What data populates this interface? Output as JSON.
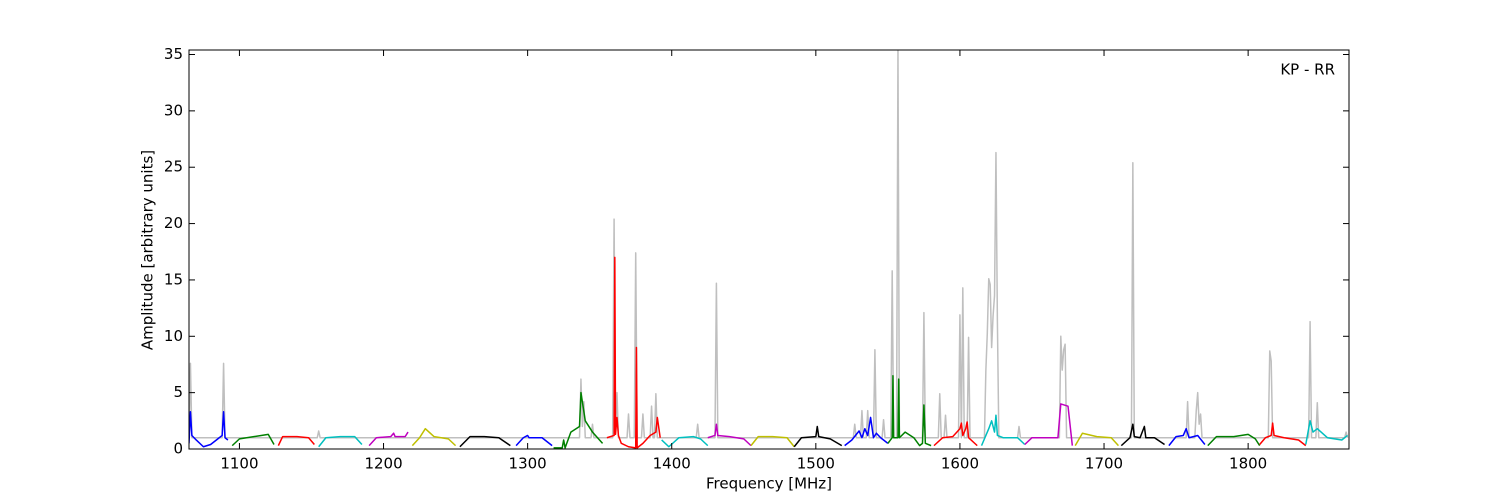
{
  "chart_data": {
    "type": "line",
    "xlabel": "Frequency [MHz]",
    "ylabel": "Amplitude [arbitrary units]",
    "annotation": "KP - RR",
    "xlim": [
      1065,
      1870
    ],
    "ylim": [
      0,
      35.4
    ],
    "xticks": [
      1100,
      1200,
      1300,
      1400,
      1500,
      1600,
      1700,
      1800
    ],
    "yticks": [
      0,
      5,
      10,
      15,
      20,
      25,
      30,
      35
    ],
    "series": [
      {
        "color": "#bfbfbf",
        "x": [
          1065,
          1066,
          1067,
          1088,
          1089,
          1090,
          1154,
          1155,
          1156,
          1336,
          1337,
          1338,
          1339,
          1340,
          1344,
          1345,
          1346,
          1359,
          1360,
          1361,
          1362,
          1363,
          1369,
          1370,
          1371,
          1374,
          1375,
          1376,
          1379,
          1380,
          1381,
          1385,
          1386,
          1387,
          1388,
          1389,
          1390,
          1417,
          1418,
          1419,
          1430,
          1431,
          1432,
          1526,
          1527,
          1528,
          1531,
          1532,
          1533,
          1535,
          1536,
          1537,
          1540,
          1541,
          1542,
          1546,
          1547,
          1548,
          1552,
          1553,
          1554,
          1556,
          1557,
          1558,
          1560,
          1574,
          1575,
          1576,
          1585,
          1586,
          1587,
          1589,
          1590,
          1591,
          1599,
          1600,
          1601,
          1602,
          1603,
          1605,
          1606,
          1607,
          1617,
          1618,
          1619,
          1620,
          1621,
          1622,
          1623,
          1624,
          1625,
          1626,
          1627,
          1640,
          1641,
          1642,
          1669,
          1670,
          1671,
          1672,
          1673,
          1674,
          1719,
          1720,
          1721,
          1757,
          1758,
          1759,
          1763,
          1764,
          1765,
          1766,
          1767,
          1768,
          1814,
          1815,
          1816,
          1817,
          1842,
          1843,
          1844,
          1847,
          1848,
          1849,
          1867,
          1868,
          1869
        ],
        "values": [
          1,
          7.6,
          1,
          1,
          7.6,
          1,
          1,
          1.6,
          1,
          1,
          6.2,
          2,
          4.2,
          1,
          1,
          2.2,
          1,
          1,
          20.4,
          2,
          5,
          1,
          1,
          3.1,
          1,
          1,
          17.4,
          1,
          1,
          3.1,
          1,
          1,
          3.8,
          1,
          1,
          4.9,
          1,
          1,
          2.2,
          1,
          1,
          14.7,
          1,
          1,
          2.2,
          1,
          1,
          3.4,
          1,
          1,
          3.4,
          1,
          1,
          8.8,
          1,
          1,
          2.6,
          1,
          1,
          15.8,
          1,
          1,
          35.4,
          1,
          1,
          1,
          12.1,
          1,
          1,
          4.9,
          1,
          1,
          3,
          1,
          1,
          11.9,
          1,
          14.3,
          1,
          1,
          9.9,
          1,
          1,
          7,
          10.3,
          15.1,
          14.6,
          9,
          11.8,
          13.6,
          26.3,
          11.3,
          1,
          1,
          2,
          1,
          1,
          10,
          7,
          8.8,
          9.3,
          1,
          1,
          25.4,
          1,
          1,
          4.2,
          1,
          1,
          3.4,
          5,
          2.2,
          3.1,
          1,
          1,
          8.7,
          7.8,
          1,
          1,
          11.3,
          1,
          1,
          4.1,
          1,
          1,
          1.5,
          1
        ]
      },
      {
        "color": "#0000ff",
        "x": [
          1065,
          1066,
          1067,
          1070,
          1075,
          1080,
          1085,
          1088,
          1089,
          1090,
          1092
        ],
        "values": [
          0.5,
          3.3,
          1.2,
          0.8,
          0.2,
          0.4,
          0.9,
          1.2,
          3.3,
          1.0,
          0.8
        ]
      },
      {
        "color": "#008000",
        "x": [
          1095,
          1100,
          1110,
          1120,
          1124
        ],
        "values": [
          0.3,
          0.9,
          1.1,
          1.3,
          0.4
        ]
      },
      {
        "color": "#ff0000",
        "x": [
          1127,
          1130,
          1140,
          1148,
          1152
        ],
        "values": [
          0.3,
          1.1,
          1.1,
          1.0,
          0.4
        ]
      },
      {
        "color": "#00bfbf",
        "x": [
          1155,
          1160,
          1170,
          1180,
          1185
        ],
        "values": [
          0.2,
          1.0,
          1.1,
          1.1,
          0.4
        ]
      },
      {
        "color": "#bf00bf",
        "x": [
          1190,
          1195,
          1205,
          1207,
          1208,
          1215,
          1217
        ],
        "values": [
          0.3,
          1.0,
          1.1,
          1.4,
          1.1,
          1.1,
          1.5
        ]
      },
      {
        "color": "#bfbf00",
        "x": [
          1220,
          1225,
          1229,
          1235,
          1245,
          1250
        ],
        "values": [
          0.3,
          1.0,
          1.8,
          1.1,
          0.9,
          0.3
        ]
      },
      {
        "color": "#000000",
        "x": [
          1253,
          1260,
          1270,
          1280,
          1288
        ],
        "values": [
          0.2,
          1.1,
          1.1,
          1.0,
          0.3
        ]
      },
      {
        "color": "#0000ff",
        "x": [
          1292,
          1297,
          1300,
          1301,
          1310,
          1317
        ],
        "values": [
          0.3,
          1.0,
          1.2,
          1.0,
          1.0,
          0.3
        ]
      },
      {
        "color": "#008000",
        "x": [
          1318,
          1324,
          1325,
          1326,
          1330,
          1336,
          1337,
          1340,
          1345,
          1352
        ],
        "values": [
          0.1,
          0.1,
          0.8,
          0.1,
          1.5,
          2.0,
          5.0,
          2.5,
          1.5,
          0.5
        ]
      },
      {
        "color": "#ff0000",
        "x": [
          1355,
          1360,
          1360.5,
          1361,
          1362,
          1363,
          1365,
          1370,
          1375,
          1375.5,
          1376,
          1380,
          1385,
          1389,
          1390,
          1392
        ],
        "values": [
          1.0,
          1.2,
          17.0,
          1.3,
          2.8,
          1.2,
          0.5,
          0.2,
          0.1,
          9.0,
          0.1,
          0.5,
          1.2,
          1.5,
          2.8,
          1.0
        ]
      },
      {
        "color": "#00bfbf",
        "x": [
          1393,
          1398,
          1405,
          1415,
          1420,
          1425
        ],
        "values": [
          0.8,
          0.2,
          1.0,
          1.1,
          0.9,
          0.3
        ]
      },
      {
        "color": "#bf00bf",
        "x": [
          1425,
          1430,
          1431,
          1432,
          1440,
          1450,
          1455
        ],
        "values": [
          1.0,
          1.2,
          2.2,
          1.2,
          1.1,
          0.9,
          0.3
        ]
      },
      {
        "color": "#bfbf00",
        "x": [
          1455,
          1460,
          1470,
          1480,
          1485
        ],
        "values": [
          0.3,
          1.1,
          1.1,
          1.0,
          0.2
        ]
      },
      {
        "color": "#000000",
        "x": [
          1485,
          1490,
          1500,
          1501,
          1502,
          1510,
          1518
        ],
        "values": [
          0.2,
          1.0,
          1.1,
          2.0,
          1.1,
          0.9,
          0.3
        ]
      },
      {
        "color": "#0000ff",
        "x": [
          1520,
          1525,
          1530,
          1532,
          1534,
          1536,
          1538,
          1540,
          1542,
          1545,
          1550
        ],
        "values": [
          0.3,
          0.8,
          1.6,
          1.0,
          1.8,
          1.2,
          2.8,
          1.0,
          1.4,
          1.0,
          0.5
        ]
      },
      {
        "color": "#008000",
        "x": [
          1550,
          1553,
          1553.5,
          1554,
          1557,
          1557.5,
          1558,
          1562,
          1568,
          1572,
          1574,
          1575,
          1576,
          1580
        ],
        "values": [
          0.5,
          1.0,
          6.5,
          1.0,
          1.0,
          6.2,
          1.0,
          1.5,
          1.0,
          0.3,
          0.5,
          3.9,
          0.5,
          0.3
        ]
      },
      {
        "color": "#ff0000",
        "x": [
          1582,
          1588,
          1595,
          1600,
          1601,
          1602,
          1604,
          1605,
          1606,
          1612
        ],
        "values": [
          0.3,
          1.0,
          1.1,
          1.8,
          2.3,
          1.2,
          1.8,
          2.4,
          1.0,
          0.3
        ]
      },
      {
        "color": "#00bfbf",
        "x": [
          1615,
          1620,
          1622,
          1624,
          1625,
          1626,
          1630,
          1640,
          1645
        ],
        "values": [
          0.3,
          1.8,
          2.5,
          1.5,
          3.0,
          1.2,
          1.0,
          1.0,
          0.4
        ]
      },
      {
        "color": "#bf00bf",
        "x": [
          1645,
          1650,
          1660,
          1668,
          1670,
          1675,
          1678
        ],
        "values": [
          0.4,
          1.0,
          1.0,
          1.0,
          4.0,
          3.8,
          0.3
        ]
      },
      {
        "color": "#bfbf00",
        "x": [
          1680,
          1685,
          1695,
          1705,
          1710
        ],
        "values": [
          0.3,
          1.4,
          1.1,
          1.0,
          0.3
        ]
      },
      {
        "color": "#000000",
        "x": [
          1712,
          1718,
          1720,
          1721,
          1725,
          1728,
          1729,
          1735,
          1742
        ],
        "values": [
          0.3,
          1.0,
          2.2,
          1.1,
          1.0,
          2.0,
          1.0,
          1.0,
          0.4
        ]
      },
      {
        "color": "#0000ff",
        "x": [
          1745,
          1750,
          1755,
          1757,
          1759,
          1765,
          1770
        ],
        "values": [
          0.3,
          1.1,
          1.2,
          1.8,
          1.0,
          1.2,
          0.4
        ]
      },
      {
        "color": "#008000",
        "x": [
          1772,
          1778,
          1790,
          1800,
          1805,
          1808
        ],
        "values": [
          0.3,
          1.1,
          1.1,
          1.3,
          0.9,
          0.3
        ]
      },
      {
        "color": "#ff0000",
        "x": [
          1808,
          1812,
          1816,
          1817,
          1818,
          1825,
          1835,
          1840
        ],
        "values": [
          0.4,
          1.0,
          1.2,
          2.3,
          1.2,
          1.0,
          0.8,
          0.3
        ]
      },
      {
        "color": "#00bfbf",
        "x": [
          1840,
          1843,
          1845,
          1848,
          1855,
          1865,
          1869
        ],
        "values": [
          0.4,
          2.5,
          1.5,
          1.8,
          1.0,
          0.8,
          1.2
        ]
      }
    ]
  }
}
